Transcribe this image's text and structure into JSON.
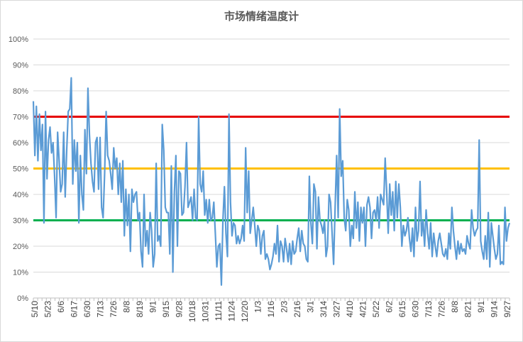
{
  "chart_data": {
    "type": "line",
    "title": "市场情绪温度计",
    "xlabel": "",
    "ylabel": "",
    "ylim": [
      0,
      100
    ],
    "y_ticks": [
      "0%",
      "10%",
      "20%",
      "30%",
      "40%",
      "50%",
      "60%",
      "70%",
      "80%",
      "90%",
      "100%"
    ],
    "x_tick_labels": [
      "5/10",
      "5/23",
      "6/6",
      "6/17",
      "6/30",
      "7/13",
      "7/26",
      "8/8",
      "8/19",
      "9/1",
      "9/15",
      "9/28",
      "10/18",
      "10/31",
      "11/11",
      "11/24",
      "12/20",
      "1/3",
      "1/16",
      "2/3",
      "2/16",
      "3/1",
      "3/14",
      "3/27",
      "4/10",
      "4/21",
      "5/22",
      "6/2",
      "6/15",
      "6/30",
      "7/13",
      "7/26",
      "8/8",
      "8/21",
      "9/1",
      "9/14",
      "9/27"
    ],
    "grid": true,
    "legend": "none",
    "reference_lines": [
      {
        "value": 70,
        "color": "#e60000"
      },
      {
        "value": 50,
        "color": "#ffc000"
      },
      {
        "value": 30,
        "color": "#00b050"
      }
    ],
    "series": [
      {
        "color": "#5b9bd5",
        "values": [
          76,
          55,
          74,
          53,
          71,
          57,
          67,
          29,
          72,
          46,
          61,
          66,
          56,
          60,
          47,
          31,
          64,
          53,
          41,
          44,
          64,
          39,
          57,
          72,
          73,
          85,
          44,
          61,
          49,
          60,
          29,
          55,
          40,
          34,
          65,
          48,
          81,
          63,
          52,
          45,
          41,
          60,
          62,
          42,
          62,
          35,
          31,
          48,
          72,
          55,
          53,
          48,
          42,
          58,
          50,
          54,
          40,
          52,
          37,
          53,
          24,
          42,
          28,
          40,
          18,
          42,
          37,
          40,
          41,
          30,
          33,
          18,
          12,
          40,
          20,
          26,
          17,
          33,
          26,
          12,
          17,
          52,
          22,
          24,
          20,
          67,
          57,
          35,
          33,
          33,
          17,
          51,
          10,
          41,
          55,
          20,
          49,
          48,
          32,
          33,
          43,
          60,
          35,
          37,
          39,
          30,
          42,
          31,
          30,
          70,
          44,
          41,
          49,
          32,
          38,
          29,
          38,
          30,
          31,
          37,
          25,
          12,
          20,
          21,
          5,
          30,
          43,
          25,
          16,
          71,
          37,
          24,
          29,
          28,
          21,
          24,
          21,
          23,
          28,
          22,
          58,
          33,
          49,
          25,
          30,
          35,
          28,
          20,
          28,
          26,
          17,
          24,
          26,
          15,
          17,
          15,
          11,
          13,
          16,
          21,
          17,
          28,
          14,
          22,
          20,
          14,
          23,
          19,
          14,
          21,
          13,
          22,
          17,
          18,
          23,
          27,
          18,
          26,
          21,
          20,
          15,
          14,
          47,
          29,
          21,
          44,
          41,
          19,
          39,
          30,
          28,
          25,
          30,
          16,
          20,
          40,
          37,
          25,
          13,
          35,
          55,
          31,
          73,
          47,
          53,
          31,
          26,
          38,
          34,
          20,
          28,
          23,
          41,
          27,
          37,
          22,
          35,
          29,
          35,
          20,
          36,
          39,
          35,
          23,
          33,
          34,
          30,
          39,
          27,
          40,
          38,
          36,
          54,
          41,
          25,
          44,
          32,
          41,
          26,
          45,
          31,
          44,
          35,
          20,
          28,
          24,
          26,
          31,
          23,
          18,
          27,
          16,
          35,
          22,
          26,
          45,
          24,
          30,
          20,
          34,
          25,
          19,
          29,
          16,
          25,
          20,
          16,
          22,
          25,
          21,
          17,
          16,
          19,
          15,
          25,
          19,
          35,
          26,
          20,
          15,
          22,
          17,
          21,
          18,
          19,
          17,
          24,
          21,
          19,
          34,
          27,
          24,
          26,
          27,
          61,
          22,
          18,
          15,
          24,
          15,
          33,
          12,
          29,
          24,
          19,
          15,
          17,
          28,
          13,
          14,
          13,
          35,
          22,
          27,
          29
        ]
      }
    ]
  }
}
